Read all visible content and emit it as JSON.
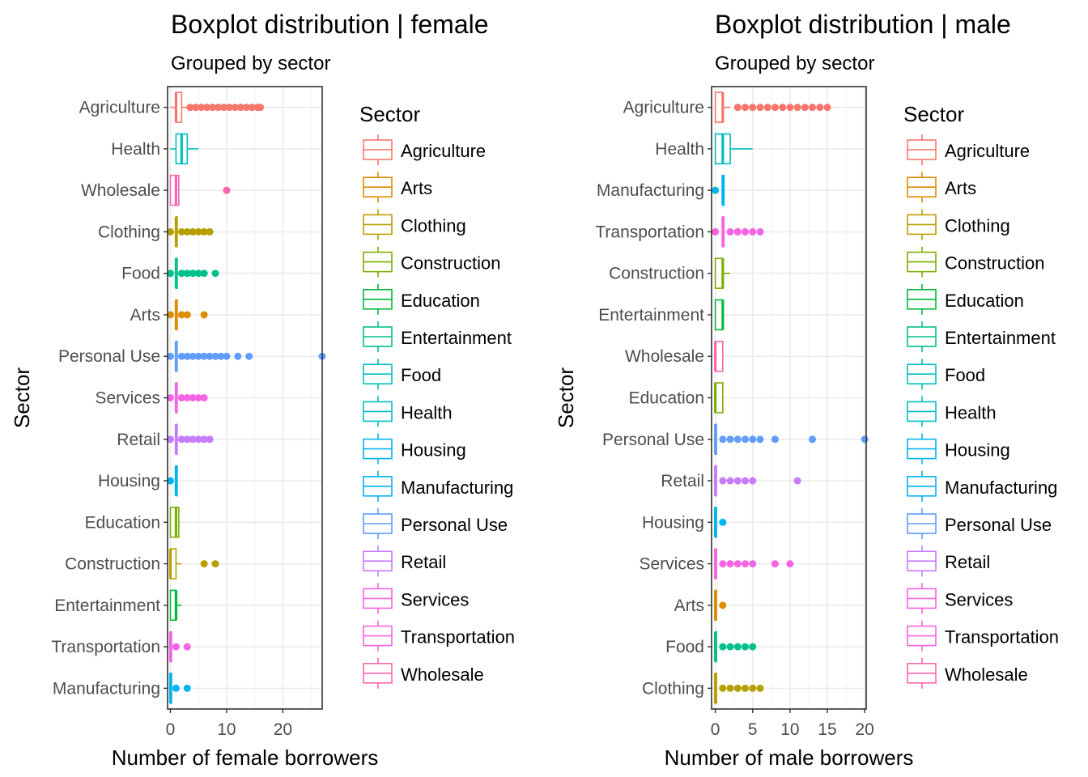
{
  "colors": {
    "Agriculture": "#F8766D",
    "Arts": "#DE8C00",
    "Clothing": "#B79F00",
    "Construction": "#7CAE00",
    "Education": "#00BA38",
    "Entertainment": "#00C08B",
    "Food": "#00BFC4",
    "Health": "#00B4F0",
    "Housing": "#619CFF",
    "Manufacturing": "#C77CFF",
    "Personal Use": "#F564E3",
    "Retail": "#FF64B0",
    "Services": "#00BFC4",
    "Transportation": "#00B4F0",
    "Wholesale": "#619CFF"
  },
  "chart_data": [
    {
      "type": "boxplot",
      "title": "Boxplot distribution | female",
      "subtitle": "Grouped by sector",
      "xlabel": "Number of female borrowers",
      "ylabel": "Sector",
      "xlim": [
        -0.5,
        27
      ],
      "xticks": [
        0,
        10,
        20
      ],
      "legend_title": "Sector",
      "legend_position": "right",
      "grid": true,
      "legend_entries": [
        "Agriculture",
        "Arts",
        "Clothing",
        "Construction",
        "Education",
        "Entertainment",
        "Food",
        "Health",
        "Housing",
        "Manufacturing",
        "Personal Use",
        "Retail",
        "Services",
        "Transportation",
        "Wholesale"
      ],
      "legend_colors": [
        "#F8766D",
        "#DE8C00",
        "#B79F00",
        "#7CAE00",
        "#00BA38",
        "#00C08B",
        "#00BFC4",
        "#00BFC4",
        "#00B4F0",
        "#00B4F0",
        "#619CFF",
        "#C77CFF",
        "#F564E3",
        "#F564E3",
        "#FF64B0"
      ],
      "categories": [
        "Agriculture",
        "Health",
        "Wholesale",
        "Clothing",
        "Food",
        "Arts",
        "Personal Use",
        "Services",
        "Retail",
        "Housing",
        "Education",
        "Construction",
        "Entertainment",
        "Transportation",
        "Manufacturing"
      ],
      "boxes": [
        {
          "sector": "Agriculture",
          "color": "#F8766D",
          "min": 0,
          "q1": 1,
          "median": 1,
          "q3": 2,
          "max": 3,
          "outliers": [
            3.5,
            4.5,
            5.5,
            6.5,
            7.5,
            8.5,
            9.5,
            10.5,
            11.5,
            12.5,
            13.5,
            14.5,
            15.5,
            16
          ]
        },
        {
          "sector": "Health",
          "color": "#00BFC4",
          "min": 0,
          "q1": 1,
          "median": 2,
          "q3": 3,
          "max": 5,
          "outliers": []
        },
        {
          "sector": "Wholesale",
          "color": "#FF64B0",
          "min": 0,
          "q1": 0,
          "median": 1,
          "q3": 1.5,
          "max": 1.5,
          "outliers": [
            10
          ]
        },
        {
          "sector": "Clothing",
          "color": "#B79F00",
          "min": 1,
          "q1": 1,
          "median": 1,
          "q3": 1,
          "max": 1,
          "outliers": [
            0,
            2,
            3,
            4,
            5,
            6,
            7
          ]
        },
        {
          "sector": "Food",
          "color": "#00C08B",
          "min": 1,
          "q1": 1,
          "median": 1,
          "q3": 1,
          "max": 1,
          "outliers": [
            0,
            2,
            3,
            4,
            5,
            6,
            8
          ]
        },
        {
          "sector": "Arts",
          "color": "#DE8C00",
          "min": 1,
          "q1": 1,
          "median": 1,
          "q3": 1,
          "max": 1,
          "outliers": [
            0,
            2,
            3,
            6
          ]
        },
        {
          "sector": "Personal Use",
          "color": "#619CFF",
          "min": 1,
          "q1": 1,
          "median": 1,
          "q3": 1,
          "max": 1,
          "outliers": [
            0,
            2,
            3,
            4,
            5,
            6,
            7,
            8,
            9,
            10,
            12,
            14,
            27
          ]
        },
        {
          "sector": "Services",
          "color": "#F564E3",
          "min": 1,
          "q1": 1,
          "median": 1,
          "q3": 1,
          "max": 1,
          "outliers": [
            0,
            2,
            3,
            4,
            5,
            6
          ]
        },
        {
          "sector": "Retail",
          "color": "#C77CFF",
          "min": 1,
          "q1": 1,
          "median": 1,
          "q3": 1,
          "max": 1,
          "outliers": [
            0,
            2,
            3,
            4,
            5,
            6,
            7
          ]
        },
        {
          "sector": "Housing",
          "color": "#00B4F0",
          "min": 1,
          "q1": 1,
          "median": 1,
          "q3": 1,
          "max": 1,
          "outliers": [
            0
          ]
        },
        {
          "sector": "Education",
          "color": "#7CAE00",
          "min": 0,
          "q1": 0,
          "median": 1,
          "q3": 1.5,
          "max": 1.5,
          "outliers": []
        },
        {
          "sector": "Construction",
          "color": "#B79F00",
          "min": 0,
          "q1": 0,
          "median": 0,
          "q3": 1,
          "max": 2,
          "outliers": [
            6,
            8
          ]
        },
        {
          "sector": "Entertainment",
          "color": "#00BA38",
          "min": 0,
          "q1": 0,
          "median": 1,
          "q3": 1,
          "max": 2,
          "outliers": []
        },
        {
          "sector": "Transportation",
          "color": "#F564E3",
          "min": 0,
          "q1": 0,
          "median": 0,
          "q3": 0,
          "max": 0,
          "outliers": [
            1,
            3
          ]
        },
        {
          "sector": "Manufacturing",
          "color": "#00B4F0",
          "min": 0,
          "q1": 0,
          "median": 0,
          "q3": 0,
          "max": 0,
          "outliers": [
            1,
            3
          ]
        }
      ]
    },
    {
      "type": "boxplot",
      "title": "Boxplot distribution | male",
      "subtitle": "Grouped by sector",
      "xlabel": "Number of male borrowers",
      "ylabel": "Sector",
      "xlim": [
        -0.5,
        20.2
      ],
      "xticks": [
        0,
        5,
        10,
        15,
        20
      ],
      "legend_title": "Sector",
      "legend_position": "right",
      "grid": true,
      "legend_entries": [
        "Agriculture",
        "Arts",
        "Clothing",
        "Construction",
        "Education",
        "Entertainment",
        "Food",
        "Health",
        "Housing",
        "Manufacturing",
        "Personal Use",
        "Retail",
        "Services",
        "Transportation",
        "Wholesale"
      ],
      "legend_colors": [
        "#F8766D",
        "#DE8C00",
        "#B79F00",
        "#7CAE00",
        "#00BA38",
        "#00C08B",
        "#00BFC4",
        "#00BFC4",
        "#00B4F0",
        "#00B4F0",
        "#619CFF",
        "#C77CFF",
        "#F564E3",
        "#F564E3",
        "#FF64B0"
      ],
      "categories": [
        "Agriculture",
        "Health",
        "Manufacturing",
        "Transportation",
        "Construction",
        "Entertainment",
        "Wholesale",
        "Education",
        "Personal Use",
        "Retail",
        "Housing",
        "Services",
        "Arts",
        "Food",
        "Clothing"
      ],
      "boxes": [
        {
          "sector": "Agriculture",
          "color": "#F8766D",
          "min": 0,
          "q1": 0,
          "median": 1,
          "q3": 1,
          "max": 2,
          "outliers": [
            3,
            4,
            5,
            6,
            7,
            8,
            9,
            10,
            11,
            12,
            13,
            14,
            15
          ]
        },
        {
          "sector": "Health",
          "color": "#00BFC4",
          "min": 0,
          "q1": 0,
          "median": 1,
          "q3": 2,
          "max": 5,
          "outliers": []
        },
        {
          "sector": "Manufacturing",
          "color": "#00B4F0",
          "min": 1,
          "q1": 1,
          "median": 1,
          "q3": 1,
          "max": 1,
          "outliers": [
            0
          ]
        },
        {
          "sector": "Transportation",
          "color": "#F564E3",
          "min": 1,
          "q1": 1,
          "median": 1,
          "q3": 1,
          "max": 1,
          "outliers": [
            0,
            2,
            3,
            4,
            5,
            6
          ]
        },
        {
          "sector": "Construction",
          "color": "#7CAE00",
          "min": 0,
          "q1": 0,
          "median": 1,
          "q3": 1,
          "max": 2,
          "outliers": []
        },
        {
          "sector": "Entertainment",
          "color": "#00BA38",
          "min": 0,
          "q1": 0,
          "median": 1,
          "q3": 1,
          "max": 1,
          "outliers": []
        },
        {
          "sector": "Wholesale",
          "color": "#FF64B0",
          "min": 0,
          "q1": 0,
          "median": 0,
          "q3": 1,
          "max": 1,
          "outliers": []
        },
        {
          "sector": "Education",
          "color": "#7CAE00",
          "min": 0,
          "q1": 0,
          "median": 0,
          "q3": 1,
          "max": 1,
          "outliers": []
        },
        {
          "sector": "Personal Use",
          "color": "#619CFF",
          "min": 0,
          "q1": 0,
          "median": 0,
          "q3": 0,
          "max": 0,
          "outliers": [
            1,
            2,
            3,
            4,
            5,
            6,
            8,
            13,
            20
          ]
        },
        {
          "sector": "Retail",
          "color": "#C77CFF",
          "min": 0,
          "q1": 0,
          "median": 0,
          "q3": 0,
          "max": 0,
          "outliers": [
            1,
            2,
            3,
            4,
            5,
            11
          ]
        },
        {
          "sector": "Housing",
          "color": "#00B4F0",
          "min": 0,
          "q1": 0,
          "median": 0,
          "q3": 0,
          "max": 0,
          "outliers": [
            1
          ]
        },
        {
          "sector": "Services",
          "color": "#F564E3",
          "min": 0,
          "q1": 0,
          "median": 0,
          "q3": 0,
          "max": 0,
          "outliers": [
            1,
            2,
            3,
            4,
            5,
            8,
            10
          ]
        },
        {
          "sector": "Arts",
          "color": "#DE8C00",
          "min": 0,
          "q1": 0,
          "median": 0,
          "q3": 0,
          "max": 0,
          "outliers": [
            1
          ]
        },
        {
          "sector": "Food",
          "color": "#00C08B",
          "min": 0,
          "q1": 0,
          "median": 0,
          "q3": 0,
          "max": 0,
          "outliers": [
            1,
            2,
            3,
            4,
            5
          ]
        },
        {
          "sector": "Clothing",
          "color": "#B79F00",
          "min": 0,
          "q1": 0,
          "median": 0,
          "q3": 0,
          "max": 0,
          "outliers": [
            1,
            2,
            3,
            4,
            5,
            6
          ]
        }
      ]
    }
  ]
}
